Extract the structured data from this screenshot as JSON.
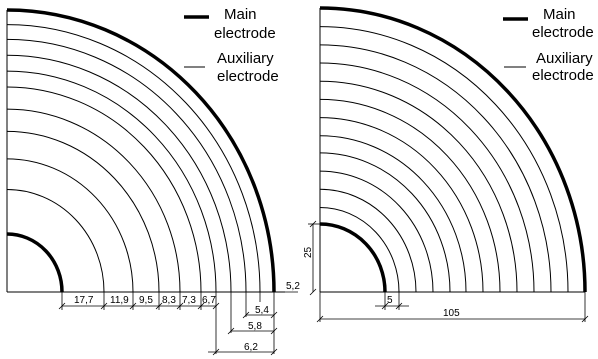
{
  "left_panel": {
    "legend": {
      "main_line1": "Main",
      "main_line2": "electrode",
      "aux_line1": "Auxiliary",
      "aux_line2": "electrode"
    },
    "dims": [
      "17,7",
      "11,9",
      "9,5",
      "8,3",
      "7,3",
      "6,7",
      "5,2",
      "5,4",
      "5,8",
      "6,2"
    ]
  },
  "right_panel": {
    "legend": {
      "main_line1": "Main",
      "main_line2": "electrode",
      "aux_line1": "Auxiliary",
      "aux_line2": "electrode"
    },
    "dims": {
      "height_25": "25",
      "small_5": "5",
      "total_105": "105"
    }
  },
  "colors": {
    "line": "#000000",
    "background": "#ffffff"
  }
}
